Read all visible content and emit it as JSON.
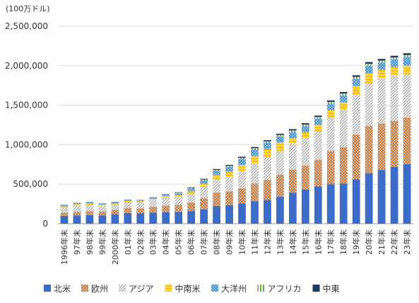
{
  "chart_data": {
    "type": "bar",
    "stacked": true,
    "unit_label": "(100万ドル)",
    "ylim": [
      0,
      2500000
    ],
    "yticks": [
      0,
      500000,
      1000000,
      1500000,
      2000000,
      2500000
    ],
    "ytick_labels": [
      "0",
      "500,000",
      "1,000,000",
      "1,500,000",
      "2,000,000",
      "2,500,000"
    ],
    "grid": "horizontal",
    "legend_position": "bottom",
    "categories": [
      "1996年末",
      "97年末",
      "98年末",
      "99年末",
      "2000年末",
      "01年末",
      "02年末",
      "03年末",
      "04年末",
      "05年末",
      "06年末",
      "07年末",
      "08年末",
      "09年末",
      "10年末",
      "11年末",
      "12年末",
      "13年末",
      "14年末",
      "15年末",
      "16年末",
      "17年末",
      "18年末",
      "19年末",
      "20年末",
      "21年末",
      "22年末",
      "23年末"
    ],
    "series": [
      {
        "name": "北米",
        "color": "#3b6cc7",
        "pattern": "solid",
        "values": [
          100000,
          105000,
          110000,
          105000,
          120000,
          135000,
          130000,
          140000,
          145000,
          150000,
          160000,
          180000,
          225000,
          235000,
          255000,
          285000,
          300000,
          340000,
          390000,
          430000,
          470000,
          500000,
          510000,
          560000,
          640000,
          680000,
          720000,
          755000
        ]
      },
      {
        "name": "欧州",
        "color": "#f07f28",
        "pattern": "dots",
        "values": [
          40000,
          45000,
          50000,
          50000,
          55000,
          65000,
          65000,
          75000,
          85000,
          90000,
          110000,
          145000,
          170000,
          175000,
          195000,
          225000,
          255000,
          280000,
          295000,
          305000,
          340000,
          420000,
          460000,
          570000,
          600000,
          590000,
          580000,
          590000
        ]
      },
      {
        "name": "アジア",
        "color": "#a6a6a6",
        "pattern": "hatch",
        "values": [
          70000,
          80000,
          80000,
          70000,
          70000,
          75000,
          75000,
          85000,
          95000,
          100000,
          110000,
          140000,
          170000,
          180000,
          210000,
          250000,
          290000,
          300000,
          330000,
          350000,
          360000,
          430000,
          470000,
          500000,
          540000,
          570000,
          580000,
          550000
        ]
      },
      {
        "name": "中南米",
        "color": "#ffc000",
        "pattern": "cross",
        "values": [
          15000,
          18000,
          18000,
          15000,
          15000,
          15000,
          15000,
          15000,
          20000,
          22000,
          30000,
          40000,
          55000,
          70000,
          85000,
          95000,
          100000,
          105000,
          70000,
          75000,
          80000,
          85000,
          95000,
          110000,
          125000,
          110000,
          105000,
          105000
        ]
      },
      {
        "name": "大洋州",
        "color": "#5b9bd5",
        "pattern": "dense",
        "values": [
          10000,
          12000,
          12000,
          12000,
          12000,
          10000,
          10000,
          12000,
          20000,
          25000,
          35000,
          45000,
          50000,
          60000,
          75000,
          85000,
          80000,
          80000,
          75000,
          75000,
          80000,
          85000,
          90000,
          95000,
          95000,
          90000,
          95000,
          110000
        ]
      },
      {
        "name": "アフリカ",
        "color": "#70ad47",
        "pattern": "vlines",
        "values": [
          2000,
          2000,
          2000,
          2000,
          2000,
          2000,
          2000,
          3000,
          4000,
          5000,
          7000,
          8000,
          10000,
          12000,
          14000,
          16000,
          17000,
          18000,
          20000,
          20000,
          21000,
          22000,
          22000,
          23000,
          24000,
          24000,
          24000,
          25000
        ]
      },
      {
        "name": "中東",
        "color": "#203864",
        "pattern": "solid",
        "values": [
          3000,
          3000,
          3000,
          3000,
          3000,
          3000,
          3000,
          4000,
          5000,
          6000,
          8000,
          10000,
          12000,
          13000,
          14000,
          15000,
          15000,
          16000,
          17000,
          17000,
          18000,
          19000,
          20000,
          21000,
          22000,
          22000,
          22000,
          23000
        ]
      }
    ]
  }
}
